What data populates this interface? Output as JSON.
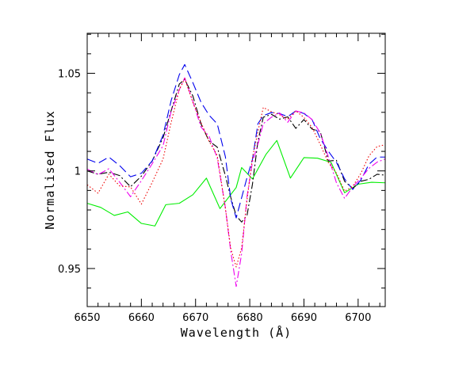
{
  "chart_data": {
    "type": "line",
    "title": "",
    "xlabel": "Wavelength (Å)",
    "ylabel": "Normalised Flux",
    "xlim": [
      6650,
      6705
    ],
    "ylim": [
      0.9305,
      1.0705
    ],
    "x_ticks": [
      6650,
      6660,
      6670,
      6680,
      6690,
      6700
    ],
    "x_tick_labels": [
      "6650",
      "6660",
      "6670",
      "6680",
      "6690",
      "6700"
    ],
    "y_ticks": [
      0.95,
      1.0,
      1.05
    ],
    "y_tick_labels": [
      "0.95",
      "1",
      "1.05"
    ],
    "grid": false,
    "legend": "none",
    "series": [
      {
        "color": "#00ee00",
        "dash": "solid",
        "points": [
          [
            6650,
            0.9834
          ],
          [
            6652.5,
            0.9813
          ],
          [
            6655,
            0.9772
          ],
          [
            6657.5,
            0.979
          ],
          [
            6660,
            0.9731
          ],
          [
            6662.5,
            0.9718
          ],
          [
            6664.5,
            0.9827
          ],
          [
            6667,
            0.9834
          ],
          [
            6669.5,
            0.9878
          ],
          [
            6672,
            0.9963
          ],
          [
            6674.5,
            0.9807
          ],
          [
            6677.5,
            0.9915
          ],
          [
            6678.5,
            1.0017
          ],
          [
            6680.5,
            0.9959
          ],
          [
            6683,
            1.0085
          ],
          [
            6685,
            1.0156
          ],
          [
            6687.5,
            0.9963
          ],
          [
            6690,
            1.0068
          ],
          [
            6692.5,
            1.0065
          ],
          [
            6695,
            1.0044
          ],
          [
            6697.5,
            0.9888
          ],
          [
            6700,
            0.9932
          ],
          [
            6702.5,
            0.9942
          ],
          [
            6705,
            0.9939
          ]
        ]
      },
      {
        "color": "#000000",
        "dash": "dashdot",
        "points": [
          [
            6650,
            1.0
          ],
          [
            6652,
            0.9983
          ],
          [
            6654,
            0.9993
          ],
          [
            6656,
            0.9976
          ],
          [
            6658,
            0.9919
          ],
          [
            6660,
            0.9973
          ],
          [
            6662,
            1.0051
          ],
          [
            6664,
            1.017
          ],
          [
            6665.5,
            1.0309
          ],
          [
            6667,
            1.0445
          ],
          [
            6668,
            1.0469
          ],
          [
            6669.5,
            1.0384
          ],
          [
            6671,
            1.0241
          ],
          [
            6672.5,
            1.0153
          ],
          [
            6674,
            1.0122
          ],
          [
            6675.5,
            0.9976
          ],
          [
            6676.5,
            0.9864
          ],
          [
            6677.5,
            0.977
          ],
          [
            6678.5,
            0.9738
          ],
          [
            6679.5,
            0.9773
          ],
          [
            6680.5,
            0.9932
          ],
          [
            6681.5,
            1.0151
          ],
          [
            6682.5,
            1.0275
          ],
          [
            6684,
            1.029
          ],
          [
            6685.5,
            1.0265
          ],
          [
            6687,
            1.0277
          ],
          [
            6688.5,
            1.0218
          ],
          [
            6690,
            1.0263
          ],
          [
            6691.5,
            1.0214
          ],
          [
            6693,
            1.0202
          ],
          [
            6694.5,
            1.0051
          ],
          [
            6696,
            1.0054
          ],
          [
            6697.5,
            0.9947
          ],
          [
            6699,
            0.991
          ],
          [
            6700.5,
            0.9947
          ],
          [
            6702,
            0.9957
          ],
          [
            6703.5,
            0.9983
          ],
          [
            6705,
            0.9978
          ]
        ]
      },
      {
        "color": "#0000ee",
        "dash": "longdash",
        "points": [
          [
            6650,
            1.0061
          ],
          [
            6652,
            1.0039
          ],
          [
            6654,
            1.0071
          ],
          [
            6656,
            1.0027
          ],
          [
            6658,
            0.997
          ],
          [
            6660,
            0.9988
          ],
          [
            6662,
            1.0051
          ],
          [
            6664,
            1.0183
          ],
          [
            6665.5,
            1.0361
          ],
          [
            6667,
            1.0493
          ],
          [
            6668,
            1.0545
          ],
          [
            6669.5,
            1.0452
          ],
          [
            6671,
            1.0352
          ],
          [
            6672.5,
            1.0285
          ],
          [
            6674,
            1.0241
          ],
          [
            6675.5,
            1.0073
          ],
          [
            6676.5,
            0.9856
          ],
          [
            6677.5,
            0.9759
          ],
          [
            6678.5,
            0.9863
          ],
          [
            6679.5,
            0.9966
          ],
          [
            6680.5,
            1.0059
          ],
          [
            6681.5,
            1.0241
          ],
          [
            6682.5,
            1.0283
          ],
          [
            6684,
            1.0299
          ],
          [
            6685.5,
            1.0294
          ],
          [
            6687,
            1.0278
          ],
          [
            6688.5,
            1.0307
          ],
          [
            6690,
            1.0294
          ],
          [
            6691.5,
            1.0263
          ],
          [
            6693,
            1.0166
          ],
          [
            6694.5,
            1.0101
          ],
          [
            6696,
            1.0044
          ],
          [
            6697.5,
            0.9959
          ],
          [
            6699,
            0.9905
          ],
          [
            6700.5,
            0.9953
          ],
          [
            6702,
            1.0034
          ],
          [
            6703.5,
            1.0071
          ],
          [
            6705,
            1.0071
          ]
        ]
      },
      {
        "color": "#ee00ee",
        "dash": "dashdot",
        "points": [
          [
            6650,
            1.0009
          ],
          [
            6652,
            0.9981
          ],
          [
            6654,
            1.0011
          ],
          [
            6656,
            0.9942
          ],
          [
            6658,
            0.9868
          ],
          [
            6660,
            0.995
          ],
          [
            6662,
            1.0037
          ],
          [
            6664,
            1.0129
          ],
          [
            6665.5,
            1.0305
          ],
          [
            6667,
            1.0416
          ],
          [
            6668,
            1.0477
          ],
          [
            6669.5,
            1.0355
          ],
          [
            6671,
            1.0225
          ],
          [
            6672.5,
            1.0177
          ],
          [
            6674,
            1.0066
          ],
          [
            6675.5,
            0.9812
          ],
          [
            6676.5,
            0.9587
          ],
          [
            6677.5,
            0.9408
          ],
          [
            6678.5,
            0.9576
          ],
          [
            6679.5,
            0.9869
          ],
          [
            6680.5,
            1.0046
          ],
          [
            6681.5,
            1.0136
          ],
          [
            6682.5,
            1.0242
          ],
          [
            6684,
            1.0275
          ],
          [
            6685.5,
            1.0297
          ],
          [
            6687,
            1.0249
          ],
          [
            6688.5,
            1.0307
          ],
          [
            6690,
            1.0297
          ],
          [
            6691.5,
            1.0263
          ],
          [
            6693,
            1.0195
          ],
          [
            6694.5,
            1.0073
          ],
          [
            6696,
            0.9939
          ],
          [
            6697.5,
            0.9859
          ],
          [
            6699,
            0.9918
          ],
          [
            6700.5,
            0.9963
          ],
          [
            6702,
            1.0013
          ],
          [
            6703.5,
            1.0045
          ],
          [
            6705,
            1.0061
          ]
        ]
      },
      {
        "color": "#ee0000",
        "dash": "dotted",
        "points": [
          [
            6650,
            0.9929
          ],
          [
            6652,
            0.9886
          ],
          [
            6654,
            0.9983
          ],
          [
            6656,
            0.9923
          ],
          [
            6658,
            0.9918
          ],
          [
            6660,
            0.983
          ],
          [
            6662,
            0.9941
          ],
          [
            6664,
            1.0061
          ],
          [
            6665.5,
            1.0249
          ],
          [
            6667,
            1.0417
          ],
          [
            6668,
            1.0472
          ],
          [
            6669.5,
            1.0352
          ],
          [
            6671,
            1.0248
          ],
          [
            6672.5,
            1.0151
          ],
          [
            6674,
            1.0079
          ],
          [
            6675.5,
            0.9808
          ],
          [
            6676.5,
            0.9602
          ],
          [
            6677.5,
            0.9508
          ],
          [
            6678.5,
            0.9605
          ],
          [
            6679.5,
            0.9852
          ],
          [
            6680.5,
            1.0067
          ],
          [
            6681.5,
            1.0201
          ],
          [
            6682.5,
            1.0325
          ],
          [
            6684,
            1.0303
          ],
          [
            6685.5,
            1.0288
          ],
          [
            6687,
            1.0265
          ],
          [
            6688.5,
            1.0307
          ],
          [
            6690,
            1.0274
          ],
          [
            6691.5,
            1.0223
          ],
          [
            6693,
            1.0136
          ],
          [
            6694.5,
            1.0043
          ],
          [
            6696,
            0.9989
          ],
          [
            6697.5,
            0.9896
          ],
          [
            6699,
            0.9921
          ],
          [
            6700.5,
            0.9987
          ],
          [
            6702,
            1.0077
          ],
          [
            6703.5,
            1.0125
          ],
          [
            6705,
            1.0134
          ]
        ]
      }
    ]
  }
}
